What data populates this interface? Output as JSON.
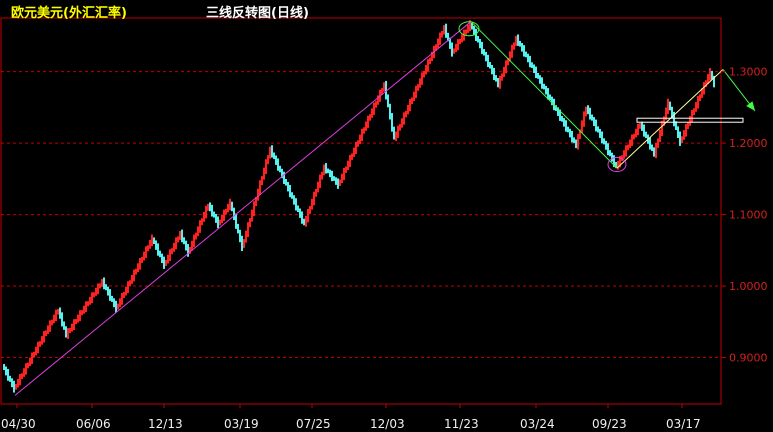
{
  "header": {
    "instrument": "欧元美元(外汇汇率)",
    "chart_name": "三线反转图(日线)"
  },
  "colors": {
    "background": "#000000",
    "frame": "#c00000",
    "grid": "#c00000",
    "up": "#ff2020",
    "down": "#55f0f0",
    "axis_text": "#d02020",
    "date_text": "#f0f0f0",
    "instrument_text": "#ffff00",
    "title_text": "#ffffff",
    "trendline_magenta": "#e040e0",
    "trendline_green": "#40ff40",
    "marker_yellow": "#ffffa0",
    "resistance_line": "#ffffff",
    "arrow": "#40ff40"
  },
  "chart_data": {
    "type": "three-line-break",
    "x_labels": [
      "04/30",
      "06/06",
      "12/13",
      "03/19",
      "07/25",
      "12/03",
      "11/23",
      "03/24",
      "09/23",
      "03/17"
    ],
    "y_ticks": [
      0.9,
      1.0,
      1.1,
      1.2,
      1.3
    ],
    "y_tick_labels": [
      "0.9000",
      "1.0000",
      "1.1000",
      "1.2000",
      "1.3000"
    ],
    "y_range": [
      0.835,
      1.375
    ],
    "grid": "horizontal dashed",
    "waypoints": [
      {
        "col": 0,
        "v": 0.888
      },
      {
        "col": 6,
        "v": 0.855
      },
      {
        "col": 28,
        "v": 0.965
      },
      {
        "col": 32,
        "v": 0.93
      },
      {
        "col": 50,
        "v": 1.005
      },
      {
        "col": 57,
        "v": 0.967
      },
      {
        "col": 75,
        "v": 1.065
      },
      {
        "col": 81,
        "v": 1.028
      },
      {
        "col": 89,
        "v": 1.072
      },
      {
        "col": 93,
        "v": 1.045
      },
      {
        "col": 103,
        "v": 1.112
      },
      {
        "col": 108,
        "v": 1.085
      },
      {
        "col": 114,
        "v": 1.115
      },
      {
        "col": 120,
        "v": 1.053
      },
      {
        "col": 134,
        "v": 1.19
      },
      {
        "col": 151,
        "v": 1.085
      },
      {
        "col": 161,
        "v": 1.165
      },
      {
        "col": 168,
        "v": 1.14
      },
      {
        "col": 191,
        "v": 1.28
      },
      {
        "col": 196,
        "v": 1.205
      },
      {
        "col": 221,
        "v": 1.36
      },
      {
        "col": 225,
        "v": 1.325
      },
      {
        "col": 234,
        "v": 1.365
      },
      {
        "col": 248,
        "v": 1.28
      },
      {
        "col": 257,
        "v": 1.345
      },
      {
        "col": 287,
        "v": 1.195
      },
      {
        "col": 292,
        "v": 1.248
      },
      {
        "col": 307,
        "v": 1.165
      },
      {
        "col": 319,
        "v": 1.225
      },
      {
        "col": 326,
        "v": 1.183
      },
      {
        "col": 333,
        "v": 1.255
      },
      {
        "col": 339,
        "v": 1.2
      },
      {
        "col": 354,
        "v": 1.298
      },
      {
        "col": 356,
        "v": 1.28
      }
    ],
    "annotations": {
      "magenta_trendline": [
        {
          "col": 6,
          "v": 0.847
        },
        {
          "col": 234,
          "v": 1.37
        }
      ],
      "green_trendline": [
        {
          "col": 234,
          "v": 1.37
        },
        {
          "col": 307,
          "v": 1.165
        }
      ],
      "yellow_trendline": [
        {
          "col": 307,
          "v": 1.165
        },
        {
          "col": 360,
          "v": 1.303
        }
      ],
      "top_ellipse": {
        "col": 233,
        "v": 1.36
      },
      "bottom_ellipse": {
        "col": 307,
        "v": 1.17
      },
      "resistance_level": {
        "from_col": 317,
        "to_col": 370,
        "v": 1.232
      },
      "arrow": {
        "from_col": 360,
        "from_v": 1.303,
        "to_col": 376,
        "to_v": 1.245
      }
    }
  }
}
